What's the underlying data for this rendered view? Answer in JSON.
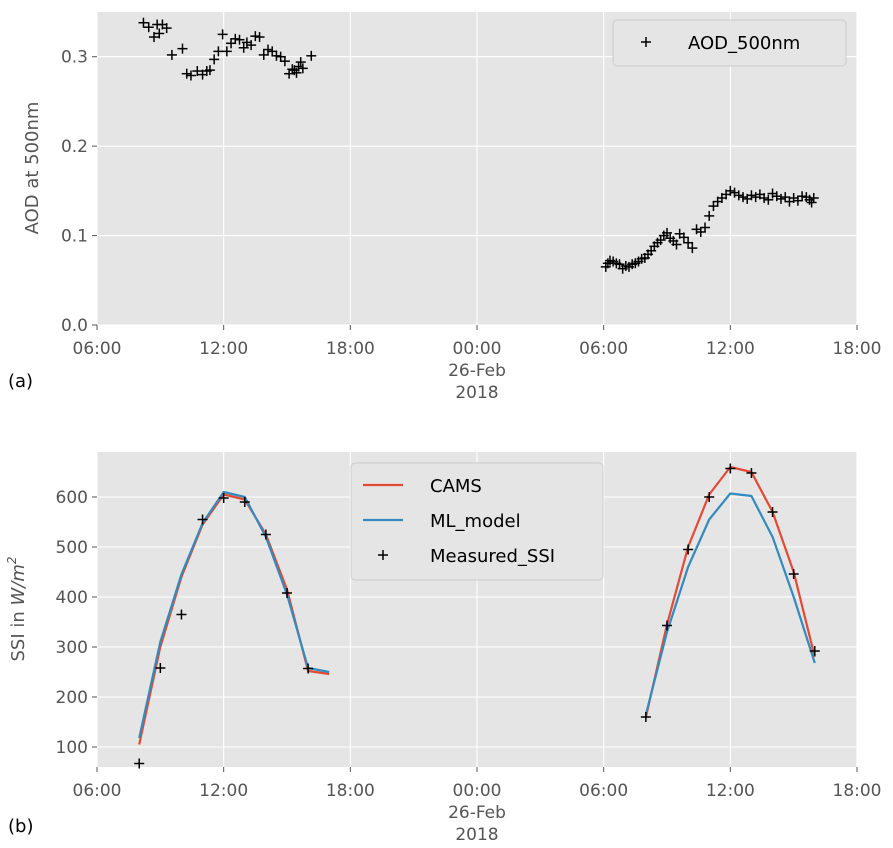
{
  "colors": {
    "plot_bg": "#e5e5e5",
    "grid": "#ffffff",
    "cams": "#e24a33",
    "ml_model": "#348abd",
    "markers": "#000000"
  },
  "chart_data": [
    {
      "type": "scatter",
      "panel_label": "(a)",
      "ylabel": "AOD at 500nm",
      "ylim": [
        0.0,
        0.35
      ],
      "y_ticks": [
        {
          "value": 0.0,
          "label": "0.0"
        },
        {
          "value": 0.1,
          "label": "0.1"
        },
        {
          "value": 0.2,
          "label": "0.2"
        },
        {
          "value": 0.3,
          "label": "0.3"
        }
      ],
      "xlim_hours": [
        6,
        42
      ],
      "x_ticks": [
        {
          "hour": 6,
          "label": "06:00"
        },
        {
          "hour": 12,
          "label": "12:00"
        },
        {
          "hour": 18,
          "label": "18:00"
        },
        {
          "hour": 24,
          "label": "00:00",
          "sub1": "26-Feb",
          "sub2": "2018"
        },
        {
          "hour": 30,
          "label": "06:00"
        },
        {
          "hour": 36,
          "label": "12:00"
        },
        {
          "hour": 42,
          "label": "18:00"
        }
      ],
      "legend_position": "top-right",
      "grid": true,
      "series": [
        {
          "name": "AOD_500nm",
          "marker": "+",
          "x": [
            8.2,
            8.45,
            8.7,
            8.85,
            8.95,
            9.1,
            9.3,
            9.55,
            10.05,
            10.25,
            10.45,
            10.75,
            11.0,
            11.2,
            11.35,
            11.55,
            11.75,
            11.95,
            12.15,
            12.35,
            12.55,
            12.75,
            12.95,
            13.1,
            13.3,
            13.5,
            13.7,
            13.9,
            14.1,
            14.3,
            14.5,
            14.7,
            14.9,
            15.1,
            15.25,
            15.35,
            15.45,
            15.55,
            15.65,
            15.75,
            16.15,
            30.1,
            30.2,
            30.3,
            30.45,
            30.6,
            30.75,
            30.9,
            31.05,
            31.2,
            31.35,
            31.5,
            31.65,
            31.8,
            31.95,
            32.1,
            32.25,
            32.4,
            32.55,
            32.7,
            32.85,
            33.0,
            33.15,
            33.3,
            33.45,
            33.6,
            33.8,
            34.0,
            34.2,
            34.4,
            34.6,
            34.8,
            35.0,
            35.2,
            35.4,
            35.6,
            35.8,
            36.0,
            36.2,
            36.4,
            36.6,
            36.8,
            37.0,
            37.2,
            37.4,
            37.6,
            37.8,
            38.0,
            38.2,
            38.4,
            38.6,
            38.8,
            39.0,
            39.2,
            39.4,
            39.6,
            39.75,
            39.85,
            39.95
          ],
          "y": [
            0.338,
            0.333,
            0.322,
            0.336,
            0.326,
            0.336,
            0.332,
            0.302,
            0.309,
            0.281,
            0.279,
            0.284,
            0.28,
            0.284,
            0.285,
            0.297,
            0.306,
            0.325,
            0.306,
            0.315,
            0.32,
            0.319,
            0.31,
            0.316,
            0.313,
            0.323,
            0.322,
            0.302,
            0.308,
            0.306,
            0.301,
            0.3,
            0.295,
            0.281,
            0.286,
            0.285,
            0.282,
            0.289,
            0.294,
            0.287,
            0.301,
            0.065,
            0.069,
            0.072,
            0.071,
            0.069,
            0.068,
            0.063,
            0.066,
            0.065,
            0.068,
            0.069,
            0.071,
            0.074,
            0.075,
            0.079,
            0.083,
            0.088,
            0.092,
            0.095,
            0.1,
            0.103,
            0.097,
            0.094,
            0.09,
            0.102,
            0.098,
            0.092,
            0.086,
            0.107,
            0.104,
            0.109,
            0.122,
            0.133,
            0.138,
            0.142,
            0.146,
            0.15,
            0.148,
            0.145,
            0.143,
            0.141,
            0.145,
            0.143,
            0.146,
            0.142,
            0.14,
            0.147,
            0.144,
            0.141,
            0.143,
            0.138,
            0.142,
            0.139,
            0.144,
            0.143,
            0.14,
            0.137,
            0.142
          ]
        }
      ]
    },
    {
      "type": "line",
      "panel_label": "(b)",
      "ylabel_prefix": "SSI in ",
      "ylabel_unit": "W/m",
      "ylabel_exp": "2",
      "ylim": [
        60,
        690
      ],
      "y_ticks": [
        {
          "value": 100,
          "label": "100"
        },
        {
          "value": 200,
          "label": "200"
        },
        {
          "value": 300,
          "label": "300"
        },
        {
          "value": 400,
          "label": "400"
        },
        {
          "value": 500,
          "label": "500"
        },
        {
          "value": 600,
          "label": "600"
        }
      ],
      "xlim_hours": [
        6,
        42
      ],
      "x_ticks": [
        {
          "hour": 6,
          "label": "06:00"
        },
        {
          "hour": 12,
          "label": "12:00"
        },
        {
          "hour": 18,
          "label": "18:00"
        },
        {
          "hour": 24,
          "label": "00:00",
          "sub1": "26-Feb",
          "sub2": "2018"
        },
        {
          "hour": 30,
          "label": "06:00"
        },
        {
          "hour": 36,
          "label": "12:00"
        },
        {
          "hour": 42,
          "label": "18:00"
        }
      ],
      "legend_position": "top-center",
      "grid": true,
      "series": [
        {
          "name": "CAMS",
          "kind": "line",
          "segments": [
            {
              "x": [
                8,
                9,
                10,
                11,
                12,
                13,
                14,
                15,
                16,
                17
              ],
              "y": [
                105,
                300,
                440,
                545,
                605,
                595,
                525,
                415,
                252,
                246
              ]
            },
            {
              "x": [
                32,
                33,
                34,
                35,
                36,
                37,
                38,
                39,
                40
              ],
              "y": [
                160,
                345,
                500,
                605,
                660,
                650,
                570,
                450,
                280
              ]
            }
          ]
        },
        {
          "name": "ML_model",
          "kind": "line",
          "segments": [
            {
              "x": [
                8,
                9,
                10,
                11,
                12,
                13,
                14,
                15,
                16,
                17
              ],
              "y": [
                118,
                310,
                445,
                548,
                610,
                600,
                520,
                405,
                258,
                250
              ]
            },
            {
              "x": [
                32,
                33,
                34,
                35,
                36,
                37,
                38,
                39,
                40
              ],
              "y": [
                165,
                330,
                460,
                555,
                607,
                602,
                520,
                400,
                268
              ]
            }
          ]
        },
        {
          "name": "Measured_SSI",
          "kind": "marker",
          "marker": "+",
          "x": [
            8,
            9,
            10,
            11,
            12,
            13,
            14,
            15,
            16,
            32,
            33,
            34,
            35,
            36,
            37,
            38,
            39,
            40
          ],
          "y": [
            67,
            258,
            365,
            555,
            598,
            590,
            525,
            408,
            257,
            160,
            343,
            495,
            600,
            657,
            648,
            570,
            446,
            292
          ]
        }
      ]
    }
  ]
}
